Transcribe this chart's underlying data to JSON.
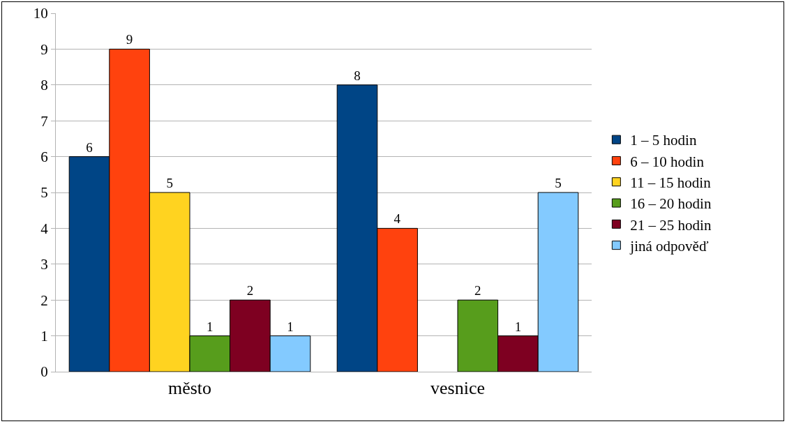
{
  "chart_data": {
    "type": "bar",
    "categories": [
      "město",
      "vesnice"
    ],
    "series": [
      {
        "name": "1 – 5 hodin",
        "color": "#004586",
        "values": [
          6,
          8
        ],
        "value_labels": [
          "6",
          "8"
        ]
      },
      {
        "name": "6 – 10 hodin",
        "color": "#ff420e",
        "values": [
          9,
          4
        ],
        "value_labels": [
          "9",
          "4"
        ]
      },
      {
        "name": "11 – 15 hodin",
        "color": "#ffd320",
        "values": [
          5,
          null
        ],
        "value_labels": [
          "5",
          null
        ]
      },
      {
        "name": "16 – 20 hodin",
        "color": "#579d1c",
        "values": [
          1,
          2
        ],
        "value_labels": [
          "1",
          "2"
        ]
      },
      {
        "name": "21 – 25 hodin",
        "color": "#7e0021",
        "values": [
          2,
          1
        ],
        "value_labels": [
          "2",
          "1"
        ]
      },
      {
        "name": "jiná odpověď",
        "color": "#83caff",
        "values": [
          1,
          5
        ],
        "value_labels": [
          "1",
          "5"
        ]
      }
    ],
    "ylim": [
      0,
      10
    ],
    "yticks": [
      0,
      1,
      2,
      3,
      4,
      5,
      6,
      7,
      8,
      9,
      10
    ],
    "grid": "y",
    "legend": "right"
  }
}
